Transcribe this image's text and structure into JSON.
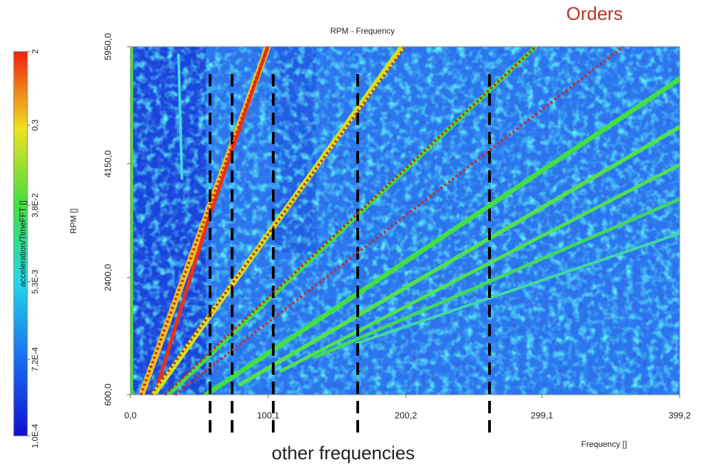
{
  "chart_data": {
    "type": "spectrogram",
    "title": "RPM - Frequency",
    "xlabel": "Frequency []",
    "ylabel": "RPM []",
    "xlim": [
      0,
      399.2
    ],
    "ylim": [
      600,
      5950
    ],
    "xticks": [
      {
        "value": 0,
        "label": "0,0"
      },
      {
        "value": 100.1,
        "label": "100,1"
      },
      {
        "value": 200.2,
        "label": "200,2"
      },
      {
        "value": 299.1,
        "label": "299,1"
      },
      {
        "value": 399.2,
        "label": "399,2"
      }
    ],
    "yticks": [
      {
        "value": 600,
        "label": "600,0"
      },
      {
        "value": 2400,
        "label": "2400,0"
      },
      {
        "value": 4150,
        "label": "4150,0"
      },
      {
        "value": 5950,
        "label": "5950,0"
      }
    ],
    "colorbar": {
      "label": "acceleration/TimeFFT []",
      "log": true,
      "lim": [
        0.0001,
        2
      ],
      "ticks": [
        {
          "value": 0.0001,
          "label": "1,0E-4"
        },
        {
          "value": 0.00072,
          "label": "7,2E-4"
        },
        {
          "value": 0.0053,
          "label": "5,3E-3"
        },
        {
          "value": 0.038,
          "label": "3,8E-2"
        },
        {
          "value": 0.3,
          "label": "0,3"
        },
        2
      ],
      "colors": [
        "#1010d0",
        "#1a6cf0",
        "#20d8e8",
        "#40e040",
        "#f0e020",
        "#f02010"
      ]
    },
    "annotations": {
      "orders_label": "Orders",
      "orders_color": "#c0302a",
      "order_lines": [
        {
          "x": [
            7.5,
            99.8
          ],
          "y": [
            600,
            5950
          ]
        },
        {
          "x": [
            15,
            199.6
          ],
          "y": [
            600,
            5950
          ]
        },
        {
          "x": [
            25,
            294.4
          ],
          "y": [
            600,
            5950
          ]
        },
        {
          "x": [
            32.4,
            358
          ],
          "y": [
            600,
            5950
          ]
        }
      ],
      "other_frequencies_label": "other frequencies",
      "other_frequencies": [
        57.9,
        73.9,
        103.8,
        165.2,
        261.0
      ]
    }
  }
}
